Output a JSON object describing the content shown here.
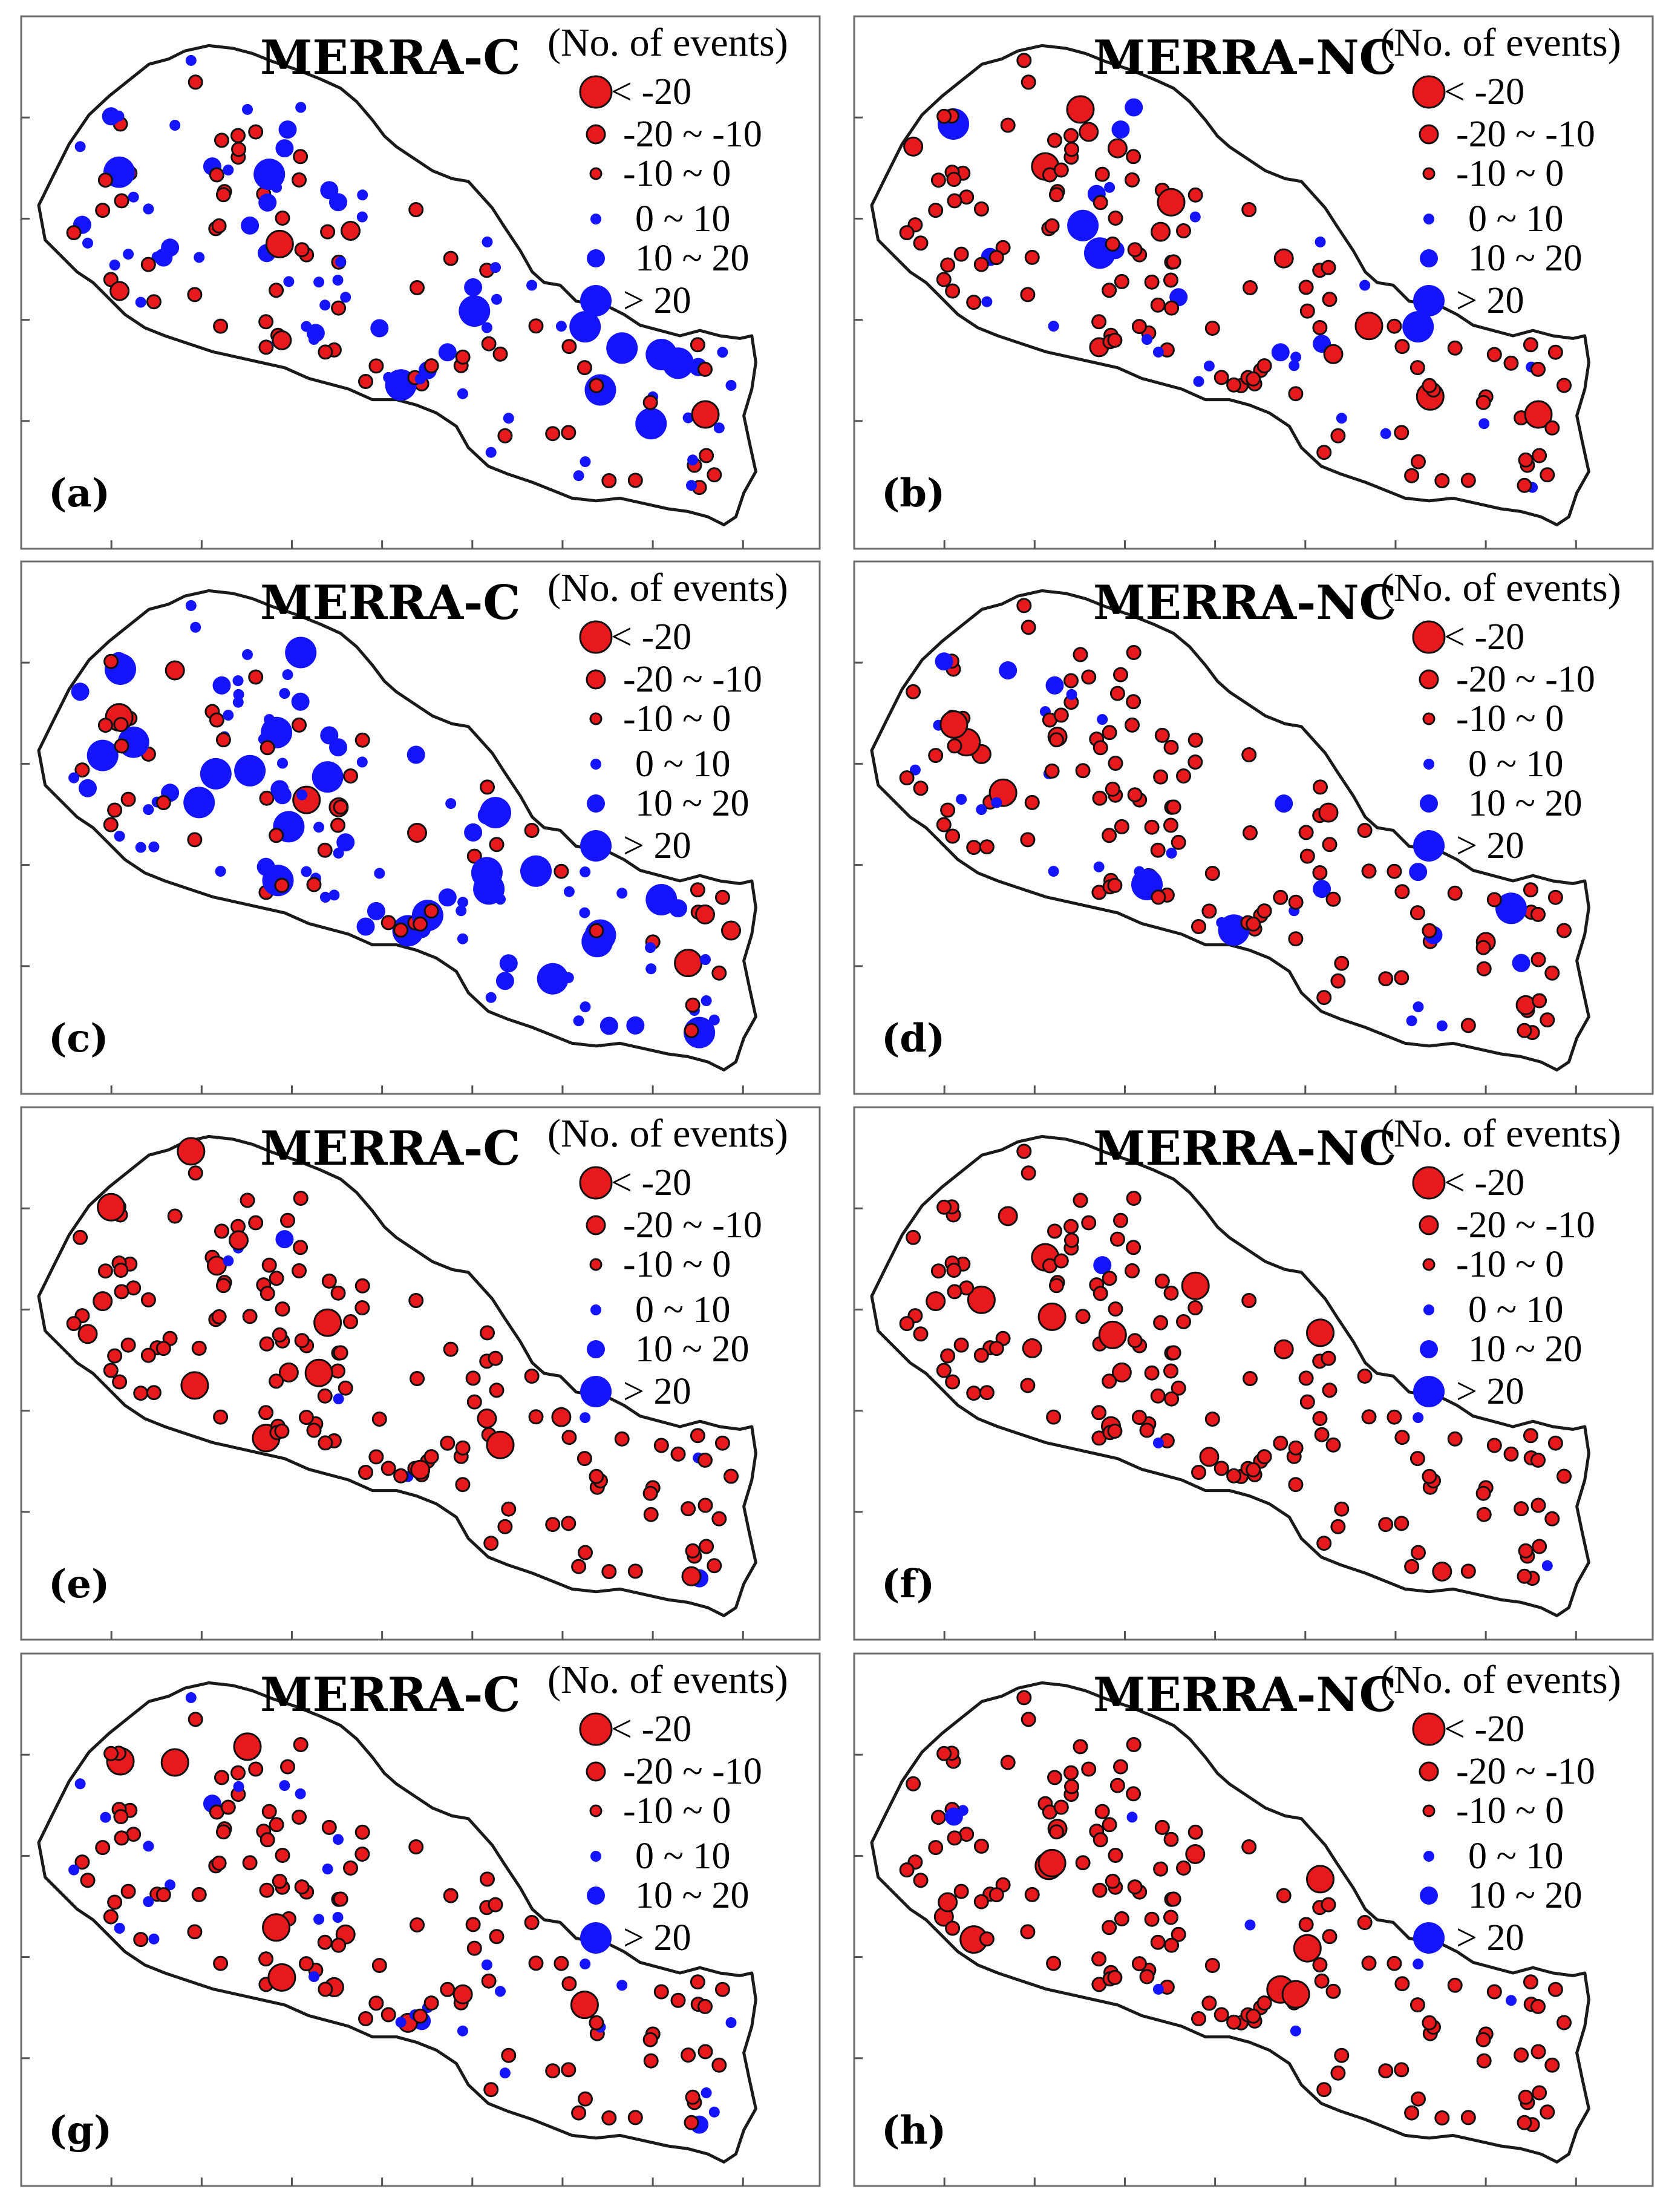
{
  "figure": {
    "legend_title": "(No. of events)",
    "legend_items": [
      {
        "label": "< -20",
        "color": "#e8191c",
        "size_class": "large"
      },
      {
        "label": "-20 ~ -10",
        "color": "#e8191c",
        "size_class": "medium"
      },
      {
        "label": "-10 ~ 0",
        "color": "#e8191c",
        "size_class": "small"
      },
      {
        "label": "0 ~ 10",
        "color": "#1414ff",
        "size_class": "small"
      },
      {
        "label": "10 ~ 20",
        "color": "#1414ff",
        "size_class": "medium"
      },
      {
        "label": "> 20",
        "color": "#1414ff",
        "size_class": "large"
      }
    ],
    "colors": {
      "negative": "#e8191c",
      "positive": "#1414ff",
      "border": "#1a1a1a"
    }
  },
  "panels": [
    {
      "label": "(a)",
      "title": "MERRA-C",
      "stations_positive_share": 0.5,
      "large_positive": 10,
      "medium_positive": 18
    },
    {
      "label": "(b)",
      "title": "MERRA-NC",
      "stations_positive_share": 0.25,
      "large_positive": 4,
      "medium_positive": 8
    },
    {
      "label": "(c)",
      "title": "MERRA-C",
      "stations_positive_share": 0.65,
      "large_positive": 22,
      "medium_positive": 24
    },
    {
      "label": "(d)",
      "title": "MERRA-NC",
      "stations_positive_share": 0.22,
      "large_positive": 3,
      "medium_positive": 8
    },
    {
      "label": "(e)",
      "title": "MERRA-C",
      "stations_positive_share": 0.05,
      "large_positive": 0,
      "medium_positive": 2
    },
    {
      "label": "(f)",
      "title": "MERRA-NC",
      "stations_positive_share": 0.01,
      "large_positive": 0,
      "medium_positive": 1
    },
    {
      "label": "(g)",
      "title": "MERRA-C",
      "stations_positive_share": 0.18,
      "large_positive": 0,
      "medium_positive": 3
    },
    {
      "label": "(h)",
      "title": "MERRA-NC",
      "stations_positive_share": 0.06,
      "large_positive": 0,
      "medium_positive": 1
    }
  ]
}
